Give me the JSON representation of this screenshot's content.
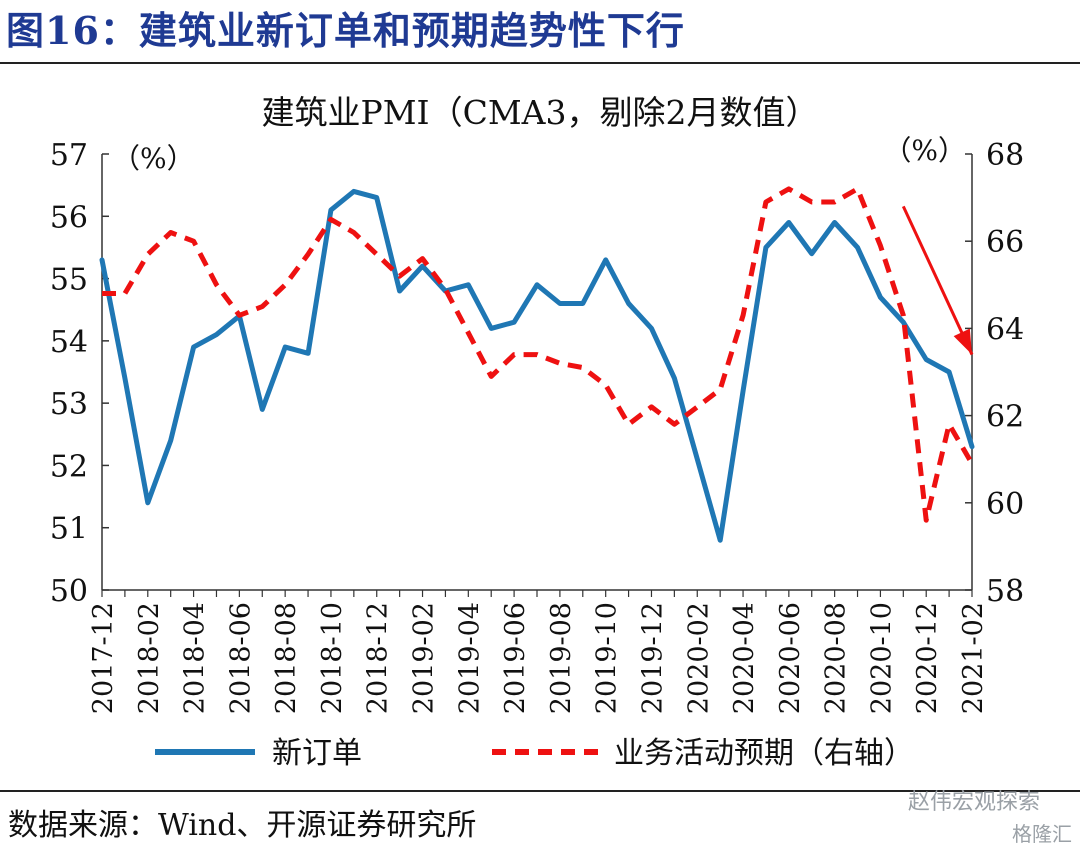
{
  "figure": {
    "title": "图16：建筑业新订单和预期趋势性下行",
    "source": "数据来源：Wind、开源证券研究所",
    "watermark_1": "赵伟宏观探索",
    "watermark_2": "格隆汇"
  },
  "chart_data": {
    "type": "line",
    "title": "建筑业PMI（CMA3，剔除2月数值）",
    "left_axis_unit": "（%）",
    "right_axis_unit": "（%）",
    "ylim_left": [
      50,
      57
    ],
    "yticks_left": [
      50,
      51,
      52,
      53,
      54,
      55,
      56,
      57
    ],
    "ylim_right": [
      58,
      68
    ],
    "yticks_right": [
      58,
      60,
      62,
      64,
      66,
      68
    ],
    "grid": false,
    "legend_position": "bottom",
    "x": [
      "2017-12",
      "2018-01",
      "2018-02",
      "2018-03",
      "2018-04",
      "2018-05",
      "2018-06",
      "2018-07",
      "2018-08",
      "2018-09",
      "2018-10",
      "2018-11",
      "2018-12",
      "2019-01",
      "2019-02",
      "2019-03",
      "2019-04",
      "2019-05",
      "2019-06",
      "2019-07",
      "2019-08",
      "2019-09",
      "2019-10",
      "2019-11",
      "2019-12",
      "2020-01",
      "2020-02",
      "2020-03",
      "2020-04",
      "2020-05",
      "2020-06",
      "2020-07",
      "2020-08",
      "2020-09",
      "2020-10",
      "2020-11",
      "2020-12",
      "2021-01",
      "2021-02"
    ],
    "xtick_labels": [
      "2017-12",
      "2018-02",
      "2018-04",
      "2018-06",
      "2018-08",
      "2018-10",
      "2018-12",
      "2019-02",
      "2019-04",
      "2019-06",
      "2019-08",
      "2019-10",
      "2019-12",
      "2020-02",
      "2020-04",
      "2020-06",
      "2020-08",
      "2020-10",
      "2020-12",
      "2021-02"
    ],
    "series": [
      {
        "name": "新订单",
        "axis": "left",
        "color": "#1f77b4",
        "style": "solid",
        "values": [
          55.3,
          53.4,
          51.4,
          52.4,
          53.9,
          54.1,
          54.4,
          52.9,
          53.9,
          53.8,
          56.1,
          56.4,
          56.3,
          54.8,
          55.2,
          54.8,
          54.9,
          54.2,
          54.3,
          54.9,
          54.6,
          54.6,
          55.3,
          54.6,
          54.2,
          53.4,
          52.1,
          50.8,
          53.2,
          55.5,
          55.9,
          55.4,
          55.9,
          55.5,
          54.7,
          54.3,
          53.7,
          53.5,
          52.3
        ]
      },
      {
        "name": "业务活动预期（右轴）",
        "axis": "right",
        "color": "#ee1111",
        "style": "dashed",
        "values": [
          64.8,
          64.8,
          65.7,
          66.2,
          66.0,
          65.0,
          64.3,
          64.5,
          65.0,
          65.7,
          66.5,
          66.2,
          65.7,
          65.2,
          65.6,
          64.9,
          63.9,
          62.9,
          63.4,
          63.4,
          63.2,
          63.1,
          62.7,
          61.8,
          62.2,
          61.8,
          62.2,
          62.6,
          64.3,
          66.9,
          67.2,
          66.9,
          66.9,
          67.2,
          65.9,
          64.3,
          59.6,
          61.8,
          60.9
        ]
      }
    ],
    "annotations": [
      {
        "type": "arrow",
        "color": "#ee1111",
        "from": [
          "2020-11",
          66.8
        ],
        "to": [
          "2021-02",
          63.4
        ]
      }
    ]
  }
}
